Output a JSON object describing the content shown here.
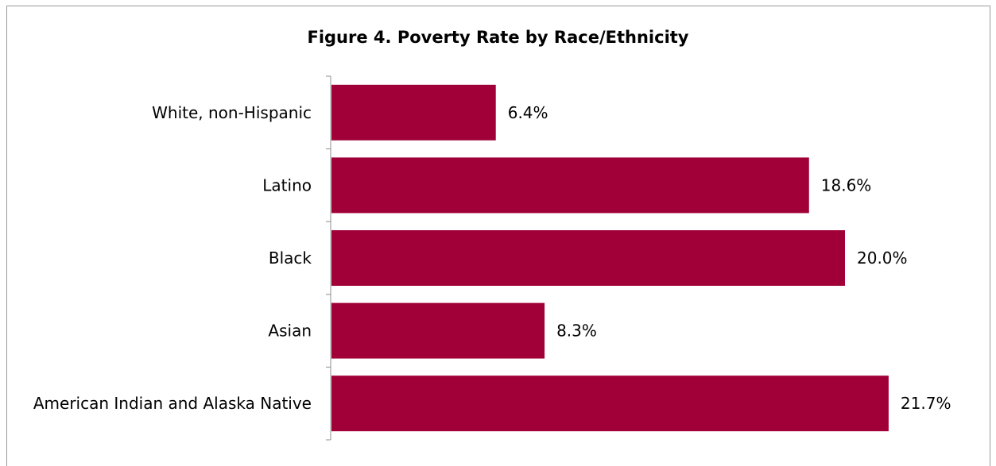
{
  "chart_data": {
    "type": "bar",
    "orientation": "horizontal",
    "title": "Figure 4. Poverty Rate by Race/Ethnicity",
    "categories": [
      "White, non-Hispanic",
      "Latino",
      "Black",
      "Asian",
      "American Indian and Alaska Native"
    ],
    "values": [
      6.4,
      18.6,
      20.0,
      8.3,
      21.7
    ],
    "value_labels": [
      "6.4%",
      "18.6%",
      "20.0%",
      "8.3%",
      "21.7%"
    ],
    "xlim": [
      0,
      25
    ],
    "xlabel": "",
    "ylabel": "",
    "grid": false,
    "legend": "none",
    "bar_color": "#a00037"
  }
}
